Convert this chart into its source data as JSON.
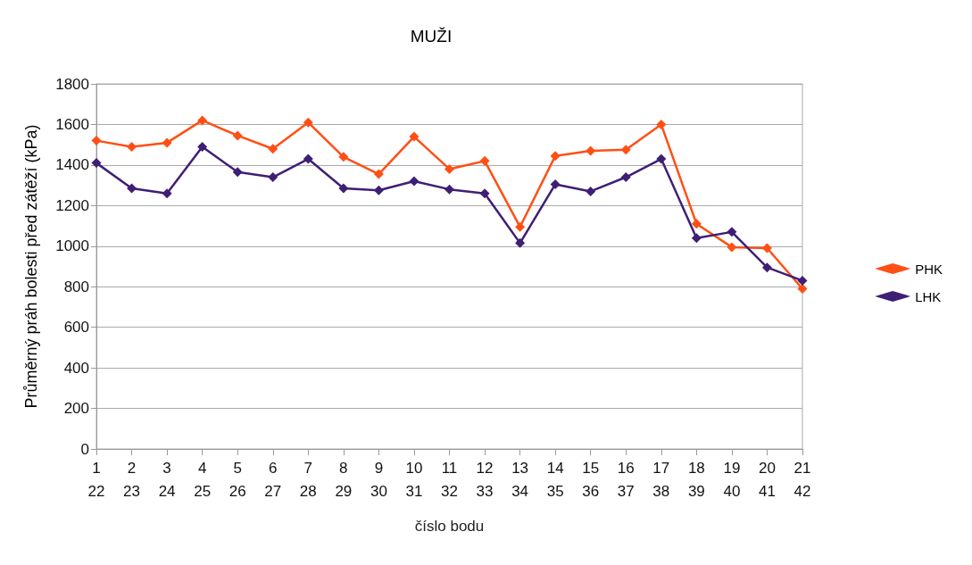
{
  "chart_data": {
    "type": "line",
    "title": "MUŽI",
    "xlabel": "číslo bodu",
    "ylabel": "Průměrný práh bolesti před zátěží (kPa)",
    "categories": [
      "1\n22",
      "2\n23",
      "3\n24",
      "4\n25",
      "5\n26",
      "6\n27",
      "7\n28",
      "8\n29",
      "9\n30",
      "10\n31",
      "11\n32",
      "12\n33",
      "13\n34",
      "14\n35",
      "15\n36",
      "16\n37",
      "17\n38",
      "18\n39",
      "19\n40",
      "20\n41",
      "21\n42"
    ],
    "series": [
      {
        "name": "PHK",
        "color": "#ff4f14",
        "values": [
          1520,
          1490,
          1510,
          1620,
          1545,
          1480,
          1610,
          1440,
          1355,
          1540,
          1380,
          1420,
          1095,
          1445,
          1470,
          1475,
          1600,
          1110,
          995,
          990,
          790
        ]
      },
      {
        "name": "LHK",
        "color": "#3f1f75",
        "values": [
          1410,
          1285,
          1260,
          1490,
          1365,
          1340,
          1430,
          1285,
          1275,
          1320,
          1280,
          1260,
          1015,
          1305,
          1270,
          1340,
          1430,
          1040,
          1070,
          895,
          830
        ]
      }
    ],
    "ylim": [
      0,
      1800
    ],
    "yticks": [
      0,
      200,
      400,
      600,
      800,
      1000,
      1200,
      1400,
      1600,
      1800
    ],
    "grid": "y",
    "legend": "right",
    "marker": "diamond",
    "line_style": "solid"
  }
}
